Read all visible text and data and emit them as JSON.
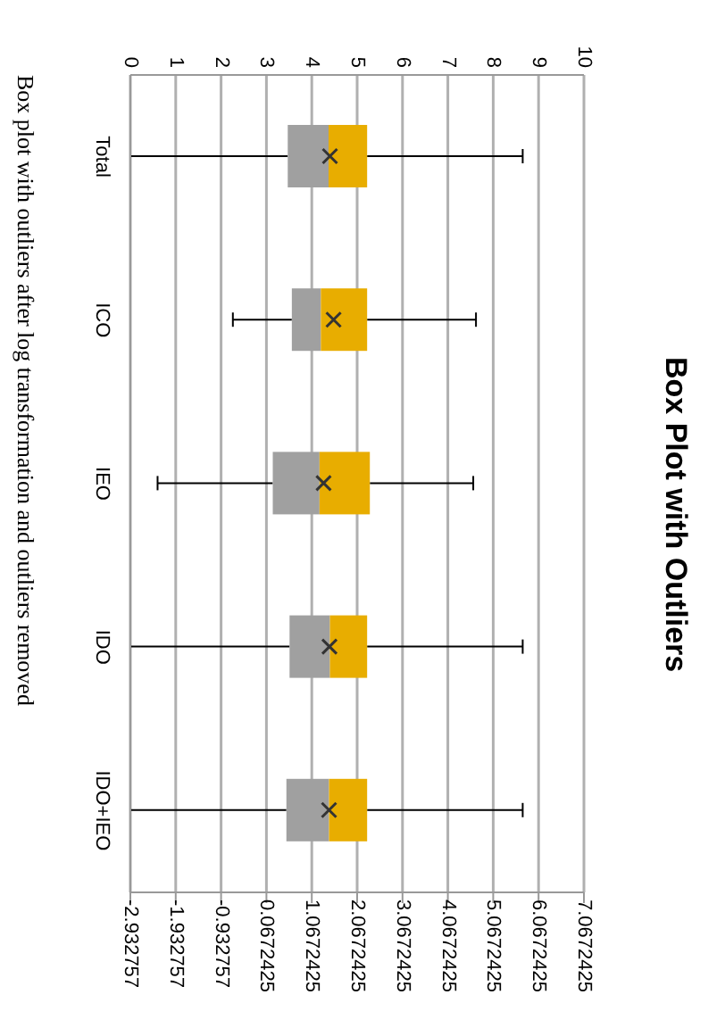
{
  "chart_data": {
    "type": "box",
    "orientation": "horizontal",
    "title": "Box Plot with Outliers",
    "categories": [
      "Total",
      "ICO",
      "IEO",
      "IDO",
      "IDO+IEO"
    ],
    "boxes": [
      {
        "low": 0,
        "q1": 3.47,
        "median": 4.37,
        "q3": 5.22,
        "high": 8.65,
        "mean": 4.4
      },
      {
        "low": 2.26,
        "q1": 3.56,
        "median": 4.2,
        "q3": 5.22,
        "high": 7.62,
        "mean": 4.48
      },
      {
        "low": 0.6,
        "q1": 3.14,
        "median": 4.17,
        "q3": 5.28,
        "high": 7.56,
        "mean": 4.26
      },
      {
        "low": 0,
        "q1": 3.51,
        "median": 4.4,
        "q3": 5.22,
        "high": 8.65,
        "mean": 4.39
      },
      {
        "low": 0,
        "q1": 3.44,
        "median": 4.38,
        "q3": 5.22,
        "high": 8.65,
        "mean": 4.38
      }
    ],
    "colors": [
      [
        "#a0a0a0",
        "#e8ad00"
      ],
      [
        "#a0a0a0",
        "#e8ad00"
      ],
      [
        "#a0a0a0",
        "#e8ad00"
      ],
      [
        "#a0a0a0",
        "#e8ad00"
      ],
      [
        "#a0a0a0",
        "#e8ad00"
      ]
    ],
    "xlim": [
      0,
      10
    ],
    "xticks": [
      0,
      1,
      2,
      3,
      4,
      5,
      6,
      7,
      8,
      9,
      10
    ],
    "x2lim": [
      -2.932757,
      7.0672425
    ],
    "x2ticks": [
      -2.932757,
      -1.932757,
      -0.932757,
      0.0672425,
      1.0672425,
      2.0672425,
      3.0672425,
      4.0672425,
      5.0672425,
      6.0672425,
      7.0672425
    ],
    "grid": "x",
    "marker": "cross",
    "annotations": [
      "Box plot with outliers after log transformation and outliers removed"
    ]
  }
}
